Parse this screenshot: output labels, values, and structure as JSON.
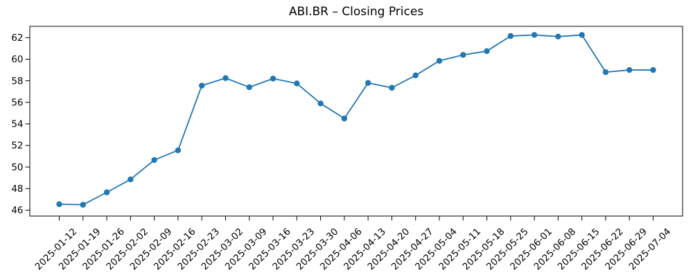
{
  "chart_data": {
    "type": "line",
    "title": "ABI.BR – Closing Prices",
    "xlabel": "",
    "ylabel": "",
    "categories": [
      "2025-01-12",
      "2025-01-19",
      "2025-01-26",
      "2025-02-02",
      "2025-02-09",
      "2025-02-16",
      "2025-02-23",
      "2025-03-02",
      "2025-03-09",
      "2025-03-16",
      "2025-03-23",
      "2025-03-30",
      "2025-04-06",
      "2025-04-13",
      "2025-04-20",
      "2025-04-27",
      "2025-05-04",
      "2025-05-11",
      "2025-05-18",
      "2025-05-25",
      "2025-06-01",
      "2025-06-08",
      "2025-06-15",
      "2025-06-22",
      "2025-06-29",
      "2025-07-04"
    ],
    "values": [
      46.55,
      46.5,
      47.65,
      48.85,
      50.65,
      51.55,
      57.55,
      58.25,
      57.4,
      58.2,
      57.75,
      55.9,
      54.5,
      57.8,
      57.35,
      58.5,
      59.85,
      60.4,
      60.75,
      62.15,
      62.25,
      62.1,
      62.25,
      58.8,
      59.0,
      59.0
    ],
    "yticks": [
      46,
      48,
      50,
      52,
      54,
      56,
      58,
      60,
      62
    ],
    "ylim": [
      45.45,
      63.05
    ],
    "grid": false,
    "legend_position": "none",
    "x_tick_rotation_deg": 45,
    "line_color": "#1f77b4",
    "marker": "circle",
    "marker_color": "#1f77b4",
    "spine_color": "#000000",
    "text_color": "#000000",
    "background_color": "#ffffff"
  }
}
